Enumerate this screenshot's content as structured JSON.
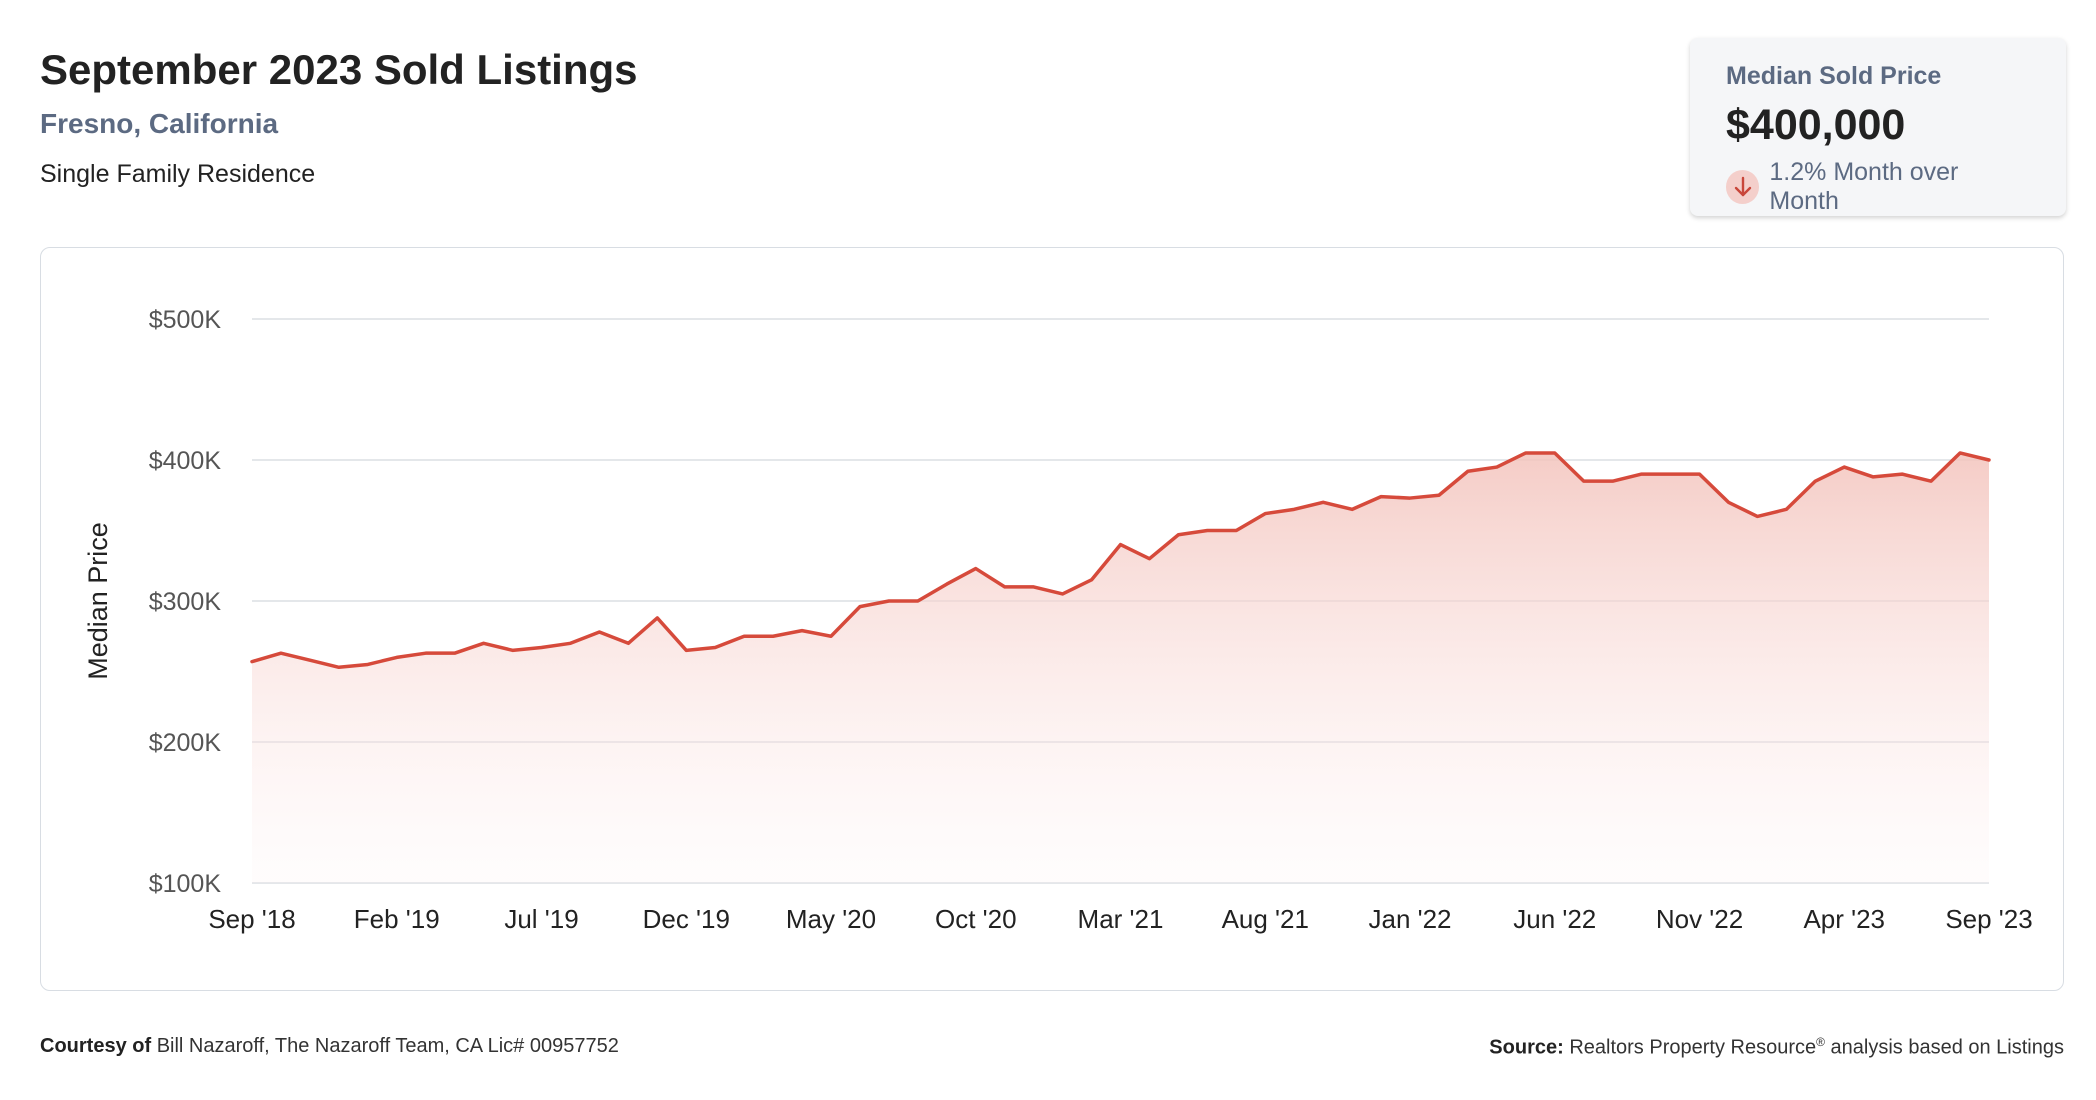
{
  "header": {
    "title": "September 2023 Sold Listings",
    "location": "Fresno, California",
    "property_type": "Single Family Residence"
  },
  "kpi": {
    "label": "Median Sold Price",
    "value": "$400,000",
    "change": "1.2% Month over Month",
    "direction": "down",
    "arrow_icon": "arrow-down-icon"
  },
  "footer": {
    "courtesy_label": "Courtesy of",
    "courtesy_text": "Bill Nazaroff, The Nazaroff Team, CA Lic# 00957752",
    "source_label": "Source:",
    "source_text": "Realtors Property Resource",
    "source_mark": "®",
    "source_suffix": "analysis based on Listings"
  },
  "colors": {
    "line": "#d64a3b",
    "fill_top": "#f4c7c1",
    "grid": "#dcdfe4",
    "axis_text": "#555555",
    "subtitle": "#5c6a82"
  },
  "chart_data": {
    "type": "area",
    "ylabel": "Median Price",
    "ylim": [
      100000,
      500000
    ],
    "yticks": [
      100000,
      200000,
      300000,
      400000,
      500000
    ],
    "ytick_labels": [
      "$100K",
      "$200K",
      "$300K",
      "$400K",
      "$500K"
    ],
    "xtick_labels": [
      "Sep '18",
      "Feb '19",
      "Jul '19",
      "Dec '19",
      "May '20",
      "Oct '20",
      "Mar '21",
      "Aug '21",
      "Jan '22",
      "Jun '22",
      "Nov '22",
      "Apr '23",
      "Sep '23"
    ],
    "xtick_month_index": [
      0,
      5,
      10,
      15,
      20,
      25,
      30,
      35,
      40,
      45,
      50,
      55,
      60
    ],
    "grid": true,
    "series": [
      {
        "start_month": "Sep 2018",
        "values": [
          257000,
          263000,
          258000,
          253000,
          255000,
          260000,
          263000,
          263000,
          270000,
          265000,
          267000,
          270000,
          278000,
          270000,
          288000,
          265000,
          267000,
          275000,
          275000,
          279000,
          275000,
          296000,
          300000,
          300000,
          312000,
          323000,
          310000,
          310000,
          305000,
          315000,
          340000,
          330000,
          347000,
          350000,
          350000,
          362000,
          365000,
          370000,
          365000,
          374000,
          373000,
          375000,
          392000,
          395000,
          405000,
          405000,
          385000,
          385000,
          390000,
          390000,
          390000,
          370000,
          360000,
          365000,
          385000,
          395000,
          388000,
          390000,
          385000,
          405000,
          400000
        ]
      }
    ]
  }
}
